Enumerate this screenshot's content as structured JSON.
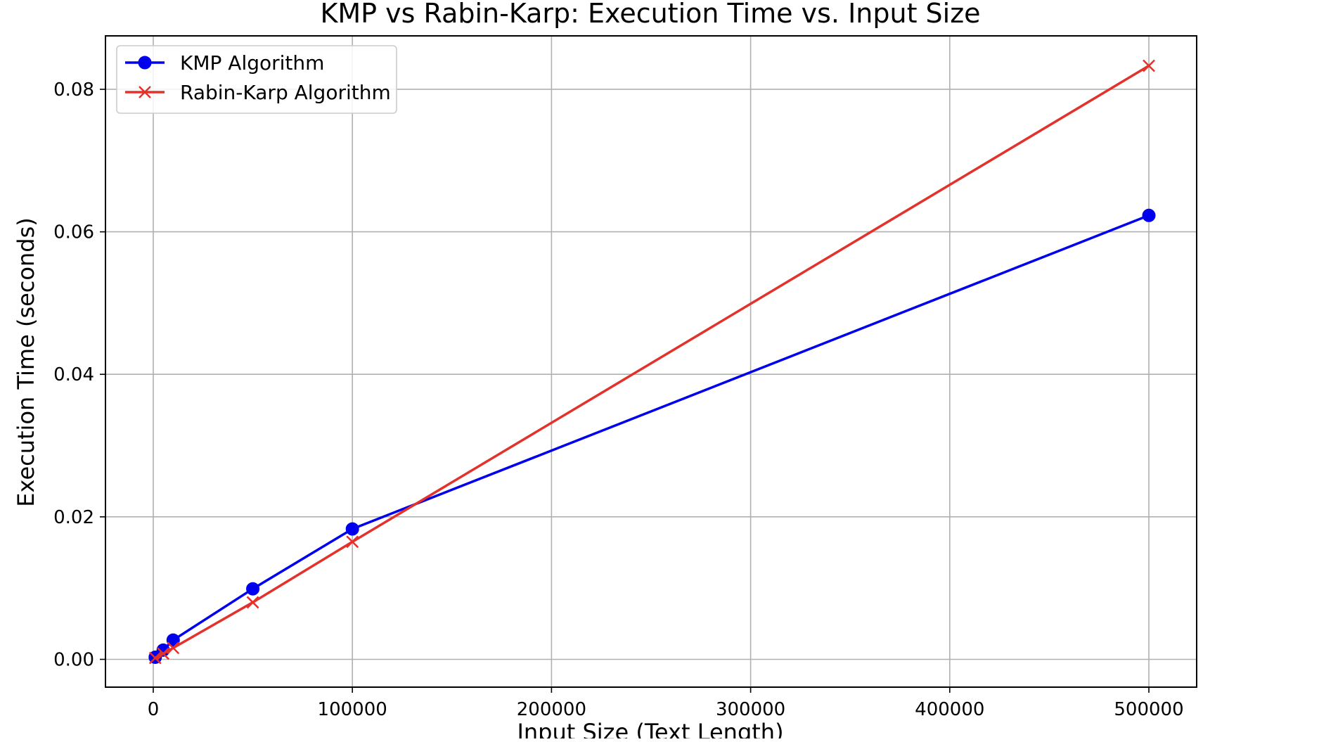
{
  "chart_data": {
    "type": "line",
    "title": "KMP vs Rabin-Karp: Execution Time vs. Input Size",
    "xlabel": "Input Size (Text Length)",
    "ylabel": "Execution Time (seconds)",
    "xlim": [
      -24000,
      524000
    ],
    "ylim": [
      -0.0039,
      0.0875
    ],
    "xticks": [
      0,
      100000,
      200000,
      300000,
      400000,
      500000
    ],
    "xtick_labels": [
      "0",
      "100000",
      "200000",
      "300000",
      "400000",
      "500000"
    ],
    "yticks": [
      0.0,
      0.02,
      0.04,
      0.06,
      0.08
    ],
    "ytick_labels": [
      "0.00",
      "0.02",
      "0.04",
      "0.06",
      "0.08"
    ],
    "grid": true,
    "legend_position": "upper-left",
    "x": [
      1000,
      5000,
      10000,
      50000,
      100000,
      500000
    ],
    "series": [
      {
        "name": "KMP Algorithm",
        "color": "#0000ee",
        "marker": "circle",
        "values": [
          0.0003,
          0.0013,
          0.0027,
          0.0099,
          0.0183,
          0.0623
        ]
      },
      {
        "name": "Rabin-Karp Algorithm",
        "color": "#e3312b",
        "marker": "x",
        "values": [
          0.0002,
          0.0008,
          0.0016,
          0.008,
          0.0165,
          0.0833
        ]
      }
    ]
  }
}
